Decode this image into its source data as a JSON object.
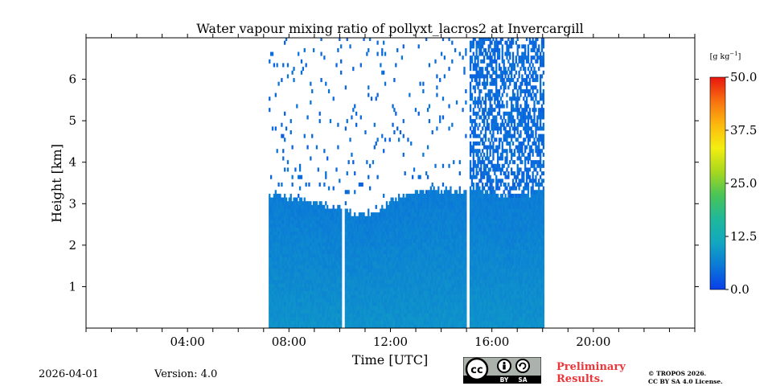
{
  "chart_data": {
    "type": "heatmap",
    "title": "Water vapour mixing ratio of pollyxt_lacros2 at Invercargill",
    "xlabel": "Time [UTC]",
    "ylabel": "Height [km]",
    "xlim_hours": [
      0,
      24
    ],
    "ylim_km": [
      0,
      7
    ],
    "x_tick_labels": [
      "04:00",
      "08:00",
      "12:00",
      "16:00",
      "20:00"
    ],
    "x_tick_hours": [
      4,
      8,
      12,
      16,
      20
    ],
    "y_tick_labels": [
      "1",
      "2",
      "3",
      "4",
      "5",
      "6"
    ],
    "y_tick_values": [
      1,
      2,
      3,
      4,
      5,
      6
    ],
    "colorbar": {
      "unit_label": "[g kg",
      "unit_superscript": "−1",
      "unit_close": "]",
      "min": 0.0,
      "max": 50.0,
      "tick_labels": [
        "0.0",
        "12.5",
        "25.0",
        "37.5",
        "50.0"
      ],
      "tick_values": [
        0.0,
        12.5,
        25.0,
        37.5,
        50.0
      ],
      "colormap": [
        "#0a3ee8",
        "#0b79d8",
        "#12a8c0",
        "#1fb89a",
        "#49c457",
        "#a8d81e",
        "#f3ee10",
        "#fcb80e",
        "#f87010",
        "#e8150f"
      ]
    },
    "measurement_periods_hours": [
      [
        7.2,
        10.05
      ],
      [
        10.2,
        14.95
      ],
      [
        15.1,
        18.05
      ]
    ],
    "gaps_hours": [
      [
        10.05,
        10.2
      ],
      [
        14.95,
        15.1
      ]
    ],
    "low_layer_top_km_by_hour": [
      [
        7.2,
        3.2
      ],
      [
        8.0,
        3.1
      ],
      [
        9.0,
        3.0
      ],
      [
        9.6,
        2.8
      ],
      [
        10.0,
        2.9
      ],
      [
        10.5,
        2.75
      ],
      [
        11.2,
        2.7
      ],
      [
        12.0,
        3.05
      ],
      [
        13.0,
        3.25
      ],
      [
        14.0,
        3.3
      ],
      [
        14.9,
        3.2
      ],
      [
        15.2,
        3.4
      ],
      [
        16.0,
        3.2
      ],
      [
        17.0,
        3.1
      ],
      [
        18.0,
        3.3
      ]
    ],
    "typical_value_g_per_kg": {
      "near_surface": 8.5,
      "mid_layer": 6.0,
      "upper_sparse": 3.0
    }
  },
  "footer": {
    "date": "2026-04-01",
    "version": "Version: 4.0",
    "preliminary_line1": "Preliminary",
    "preliminary_line2": "Results.",
    "copyright_line1": "© TROPOS 2026.",
    "copyright_line2": "CC BY SA 4.0 License.",
    "cc_text": "cc",
    "cc_by": "BY",
    "cc_sa": "SA"
  }
}
